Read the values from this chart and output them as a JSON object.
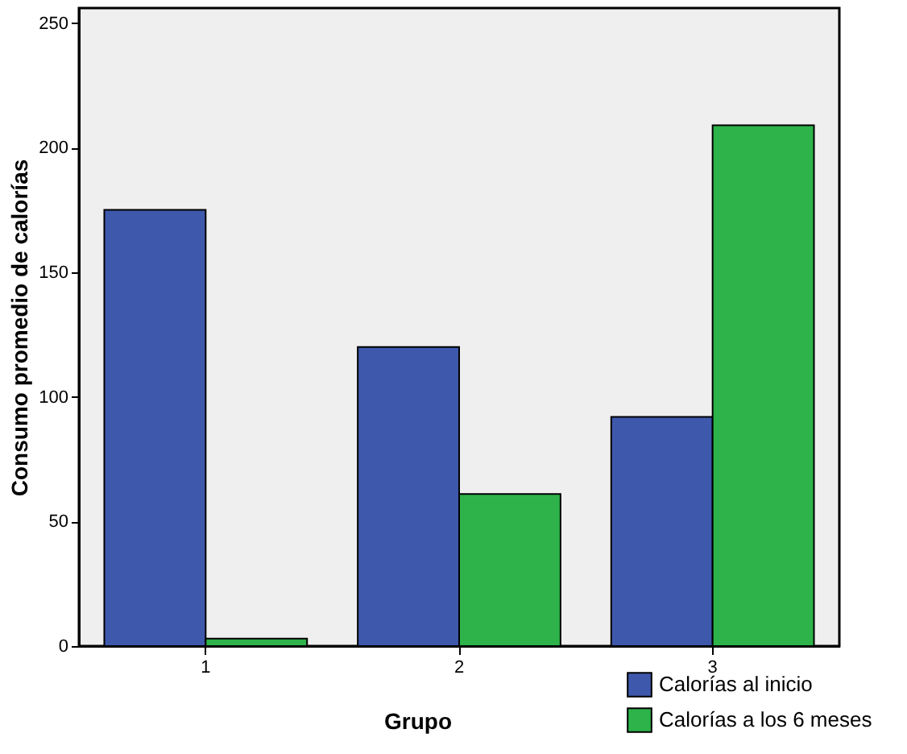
{
  "chart_data": {
    "type": "bar",
    "xlabel": "Grupo",
    "ylabel": "Consumo promedio de calorías",
    "categories": [
      "1",
      "2",
      "3"
    ],
    "series": [
      {
        "name": "Calorías al inicio",
        "color": "#3e58ac",
        "values": [
          175,
          120,
          92
        ]
      },
      {
        "name": "Calorías a los 6 meses",
        "color": "#2db34a",
        "values": [
          3,
          61,
          209
        ]
      }
    ],
    "ylim": [
      0,
      256
    ],
    "yticks": [
      0,
      50,
      100,
      150,
      200,
      250
    ],
    "grid": false,
    "legend": "bottom right"
  }
}
